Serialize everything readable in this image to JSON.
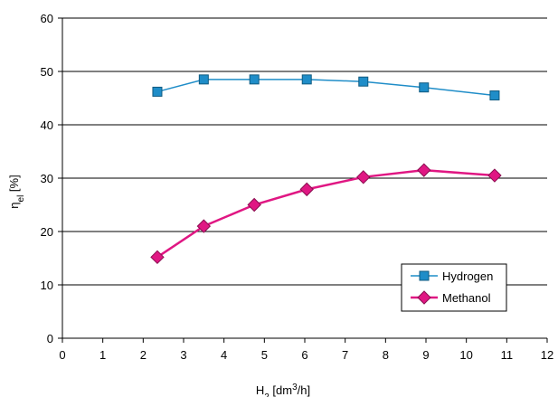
{
  "chart_data": {
    "type": "line",
    "xlabel": {
      "base": "H",
      "sub": "2",
      "text": " [dm",
      "sup": "3",
      "tail": "/h]"
    },
    "ylabel": {
      "base": "η",
      "sub": "el",
      "tail": " [%]"
    },
    "xlim": [
      0,
      12
    ],
    "ylim": [
      0,
      60
    ],
    "xticks": [
      "0",
      "1",
      "2",
      "3",
      "4",
      "5",
      "6",
      "7",
      "8",
      "9",
      "10",
      "11",
      "12"
    ],
    "yticks": [
      "0",
      "10",
      "20",
      "30",
      "40",
      "50",
      "60"
    ],
    "grid": "horizontal",
    "legend_position": "bottom-right",
    "series": [
      {
        "name": "Hydrogen",
        "color": "#1f8dc8",
        "marker": "square",
        "x": [
          2.35,
          3.5,
          4.75,
          6.05,
          7.45,
          8.95,
          10.7
        ],
        "y": [
          46.2,
          48.5,
          48.5,
          48.5,
          48.1,
          47.0,
          45.5
        ]
      },
      {
        "name": "Methanol",
        "color": "#e01783",
        "marker": "diamond",
        "x": [
          2.35,
          3.5,
          4.75,
          6.05,
          7.45,
          8.95,
          10.7
        ],
        "y": [
          15.2,
          21.0,
          25.0,
          27.9,
          30.2,
          31.5,
          30.5
        ]
      }
    ]
  }
}
